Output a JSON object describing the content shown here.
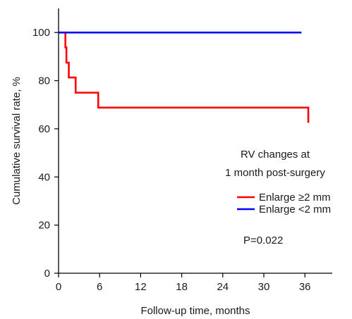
{
  "chart_data": {
    "type": "line",
    "step": true,
    "xlabel": "Follow-up time, months",
    "ylabel": "Cumulative survival rate, %",
    "xlim": [
      0,
      40
    ],
    "ylim": [
      0,
      110
    ],
    "xticks": [
      0,
      6,
      12,
      18,
      24,
      30,
      36
    ],
    "yticks": [
      0,
      20,
      40,
      60,
      80,
      100
    ],
    "grid": false,
    "legend_position": "right",
    "legend_title_lines": [
      "RV changes at",
      "1 month post-surgery"
    ],
    "series": [
      {
        "name": "Enlarge ≥2 mm",
        "color": "#ff0000",
        "x": [
          0,
          0.9,
          1.0,
          1.15,
          1.5,
          2.5,
          5.8,
          36.5
        ],
        "y": [
          100,
          100,
          93.8,
          87.5,
          81.3,
          75.0,
          68.8,
          62.5
        ]
      },
      {
        "name": "Enlarge <2 mm",
        "color": "#0000ff",
        "x": [
          0,
          35.5
        ],
        "y": [
          100,
          100
        ]
      }
    ],
    "annotations": [
      "P=0.022"
    ]
  }
}
